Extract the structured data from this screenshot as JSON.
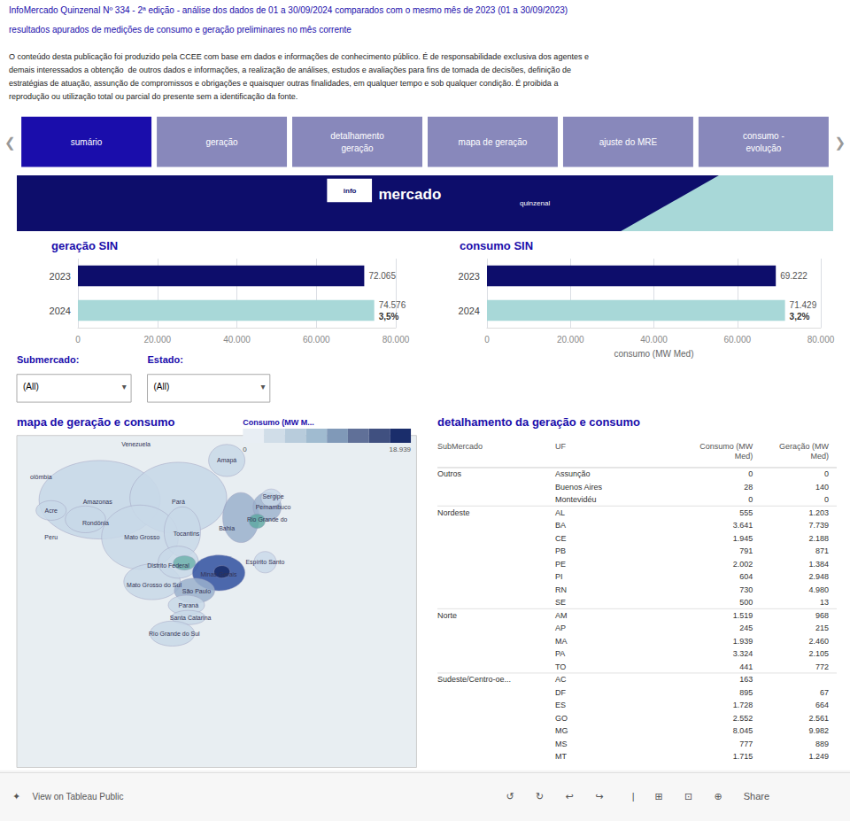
{
  "page": {
    "title": "InfoMercado Quinzenal Nº 334 - 2ª edição - análise dos dados de 01 a 30/09/2024 comparados com o mesmo mês de 2023 (01 a 30/09/2023)",
    "subtitle": "resultados apurados de medições de consumo e geração preliminares no mês corrente",
    "color": "#1a0dab",
    "body_text": [
      "O conteúdo desta publicação foi produzido pela CCEE com base em dados e informações de conhecimento público. É de responsabilidade exclusiva dos agentes e",
      "demais interessados a obtenção  de outros dados e informações, a realização de análises, estudos e avaliações para fins de tomada de decisões, definição de",
      "estratégias de atuação, assunção de compromissos e obrigações e quaisquer outras finalidades, em qualquer tempo e sob qualquer condição. É proibida a",
      "reprodução ou utilização total ou parcial do presente sem a identificação da fonte."
    ],
    "nav": {
      "tabs": [
        "sumário",
        "geração",
        "detalhamento\ngeração",
        "mapa de geração",
        "ajuste do MRE",
        "consumo -\nevolução"
      ],
      "active": 0,
      "active_color": "#1a0dab",
      "inactive_color": "#8888bb",
      "arrows": [
        "❮",
        "❯"
      ]
    },
    "banner": {
      "texts": [
        "info",
        "mercado",
        "quinzenal"
      ],
      "color": "#0d0d6b",
      "accent_color": "#a8d8d8"
    },
    "filters": [
      {
        "label": "Submercado:",
        "value": "(All)"
      },
      {
        "label": "Estado:",
        "value": "(All)"
      }
    ],
    "dropdown_arrow": "▾",
    "map": {
      "title": "mapa de geração e consumo",
      "color": "#e8eef2",
      "border_color": "#cccccc",
      "legend_label": "Consumo (MW M...",
      "legend_range": [
        0,
        {
          "value": 18939,
          "label": "18.939"
        }
      ],
      "colors": [
        "#e8eef4",
        "#d0dde8",
        "#b8ccdc",
        "#a0bbd0",
        "#8099b8",
        "#607098",
        "#405080",
        "#1a2d6b"
      ],
      "labels": [
        "Venezuela",
        "olômbia",
        "Amapá",
        "Amazonas",
        "Pará",
        "Rio Grande do",
        "Pernambuco",
        "Sergipe",
        "Bahia",
        "Acre",
        "Peru",
        "Rondônia",
        "Tocantins",
        "Mato Grosso",
        "Distrito Federal",
        "Minas Gerais",
        "Espírito Santo",
        "São Paulo",
        "Mato Grosso do Sul",
        "Paraná",
        "Santa Catarina",
        "Rio Grande do Sul"
      ]
    },
    "table": {
      "title": "detalhamento da geração e consumo",
      "columns": [
        "SubMercado",
        "UF",
        "Consumo (MW\nMed)",
        "Geração (MW\nMed)"
      ],
      "rows": [
        [
          "Outros",
          "Assunção",
          "0",
          "0"
        ],
        [
          "",
          "Buenos Aires",
          "28",
          "140"
        ],
        [
          "",
          "Montevidéu",
          "0",
          "0"
        ],
        [
          "Nordeste",
          "AL",
          "555",
          "1.203"
        ],
        [
          "",
          "BA",
          "3.641",
          "7.739"
        ],
        [
          "",
          "CE",
          "1.945",
          "2.188"
        ],
        [
          "",
          "PB",
          "791",
          "871"
        ],
        [
          "",
          "PE",
          "2.002",
          "1.384"
        ],
        [
          "",
          "PI",
          "604",
          "2.948"
        ],
        [
          "",
          "RN",
          "730",
          "4.980"
        ],
        [
          "",
          "SE",
          "500",
          "13"
        ],
        [
          "Norte",
          "AM",
          "1.519",
          "968"
        ],
        [
          "",
          "AP",
          "245",
          "215"
        ],
        [
          "",
          "MA",
          "1.939",
          "2.460"
        ],
        [
          "",
          "PA",
          "3.324",
          "2.105"
        ],
        [
          "",
          "TO",
          "441",
          "772"
        ],
        [
          "Sudeste/Centro-oe...",
          "AC",
          "163",
          ""
        ],
        [
          "",
          "DF",
          "895",
          "67"
        ],
        [
          "",
          "ES",
          "1.728",
          "664"
        ],
        [
          "",
          "GO",
          "2.552",
          "2.561"
        ],
        [
          "",
          "MG",
          "8.045",
          "9.982"
        ],
        [
          "",
          "MS",
          "777",
          "889"
        ],
        [
          "",
          "MT",
          "1.715",
          "1.249"
        ]
      ]
    },
    "footer": {
      "icon": "✦",
      "text": "View on Tableau Public",
      "tools": [
        "↺",
        "↻",
        "↩",
        "↪",
        "|",
        "⊞",
        "⊡",
        "⊕",
        "Share"
      ]
    }
  },
  "chart_data": [
    {
      "type": "bar",
      "title": "geração SIN",
      "orientation": "horizontal",
      "categories": [
        "2024",
        "2023"
      ],
      "values": [
        74576,
        72065
      ],
      "value_labels": [
        "74.576",
        "72.065"
      ],
      "colors": [
        "#a8d8d8",
        "#0d0d6b"
      ],
      "xlim": [
        0,
        80000
      ],
      "xticks": [
        0,
        {
          "value": 20000,
          "label": "20.000"
        },
        {
          "value": 40000,
          "label": "40.000"
        },
        {
          "value": 60000,
          "label": "60.000"
        },
        {
          "value": 80000,
          "label": "80.000"
        }
      ],
      "grid": true,
      "data_labels": true,
      "annotations": [
        {
          "category": "2024",
          "text": "3,5%"
        }
      ]
    },
    {
      "type": "bar",
      "title": "consumo SIN",
      "xlabel": "consumo (MW Med)",
      "orientation": "horizontal",
      "categories": [
        "2024",
        "2023"
      ],
      "values": [
        71429,
        69222
      ],
      "value_labels": [
        "71.429",
        "69.222"
      ],
      "colors": [
        "#a8d8d8",
        "#0d0d6b"
      ],
      "xlim": [
        0,
        80000
      ],
      "xticks": [
        0,
        {
          "value": 20000,
          "label": "20.000"
        },
        {
          "value": 40000,
          "label": "40.000"
        },
        {
          "value": 60000,
          "label": "60.000"
        },
        {
          "value": 80000,
          "label": "80.000"
        }
      ],
      "grid": true,
      "data_labels": true,
      "annotations": [
        {
          "category": "2024",
          "text": "3,2%"
        }
      ]
    }
  ]
}
